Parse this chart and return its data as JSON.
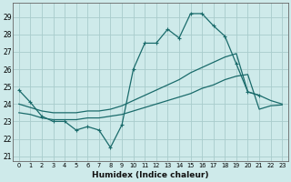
{
  "xlabel": "Humidex (Indice chaleur)",
  "x_ticks": [
    0,
    1,
    2,
    3,
    4,
    5,
    6,
    7,
    8,
    9,
    10,
    11,
    12,
    13,
    14,
    15,
    16,
    17,
    18,
    19,
    20,
    21,
    22,
    23
  ],
  "y_ticks": [
    21,
    22,
    23,
    24,
    25,
    26,
    27,
    28,
    29
  ],
  "xlim": [
    -0.5,
    23.5
  ],
  "ylim": [
    20.7,
    29.8
  ],
  "bg_color": "#ceeaea",
  "grid_color": "#a8cccc",
  "line_color": "#1a6b6b",
  "line_zigzag": [
    24.8,
    24.1,
    23.3,
    23.0,
    23.0,
    22.5,
    22.7,
    22.5,
    21.5,
    22.8,
    26.0,
    27.5,
    27.5,
    28.3,
    27.8,
    29.2,
    29.2,
    28.5,
    27.9,
    26.3,
    24.7,
    24.5,
    null,
    null
  ],
  "line_upper": [
    24.0,
    23.8,
    23.6,
    23.5,
    23.5,
    23.5,
    23.6,
    23.6,
    23.7,
    23.9,
    24.2,
    24.5,
    24.8,
    25.1,
    25.4,
    25.8,
    26.1,
    26.4,
    26.7,
    26.9,
    24.7,
    24.5,
    24.2,
    24.0
  ],
  "line_lower": [
    23.5,
    23.4,
    23.2,
    23.1,
    23.1,
    23.1,
    23.2,
    23.2,
    23.3,
    23.4,
    23.6,
    23.8,
    24.0,
    24.2,
    24.4,
    24.6,
    24.9,
    25.1,
    25.4,
    25.6,
    25.7,
    23.7,
    23.9,
    23.95
  ]
}
